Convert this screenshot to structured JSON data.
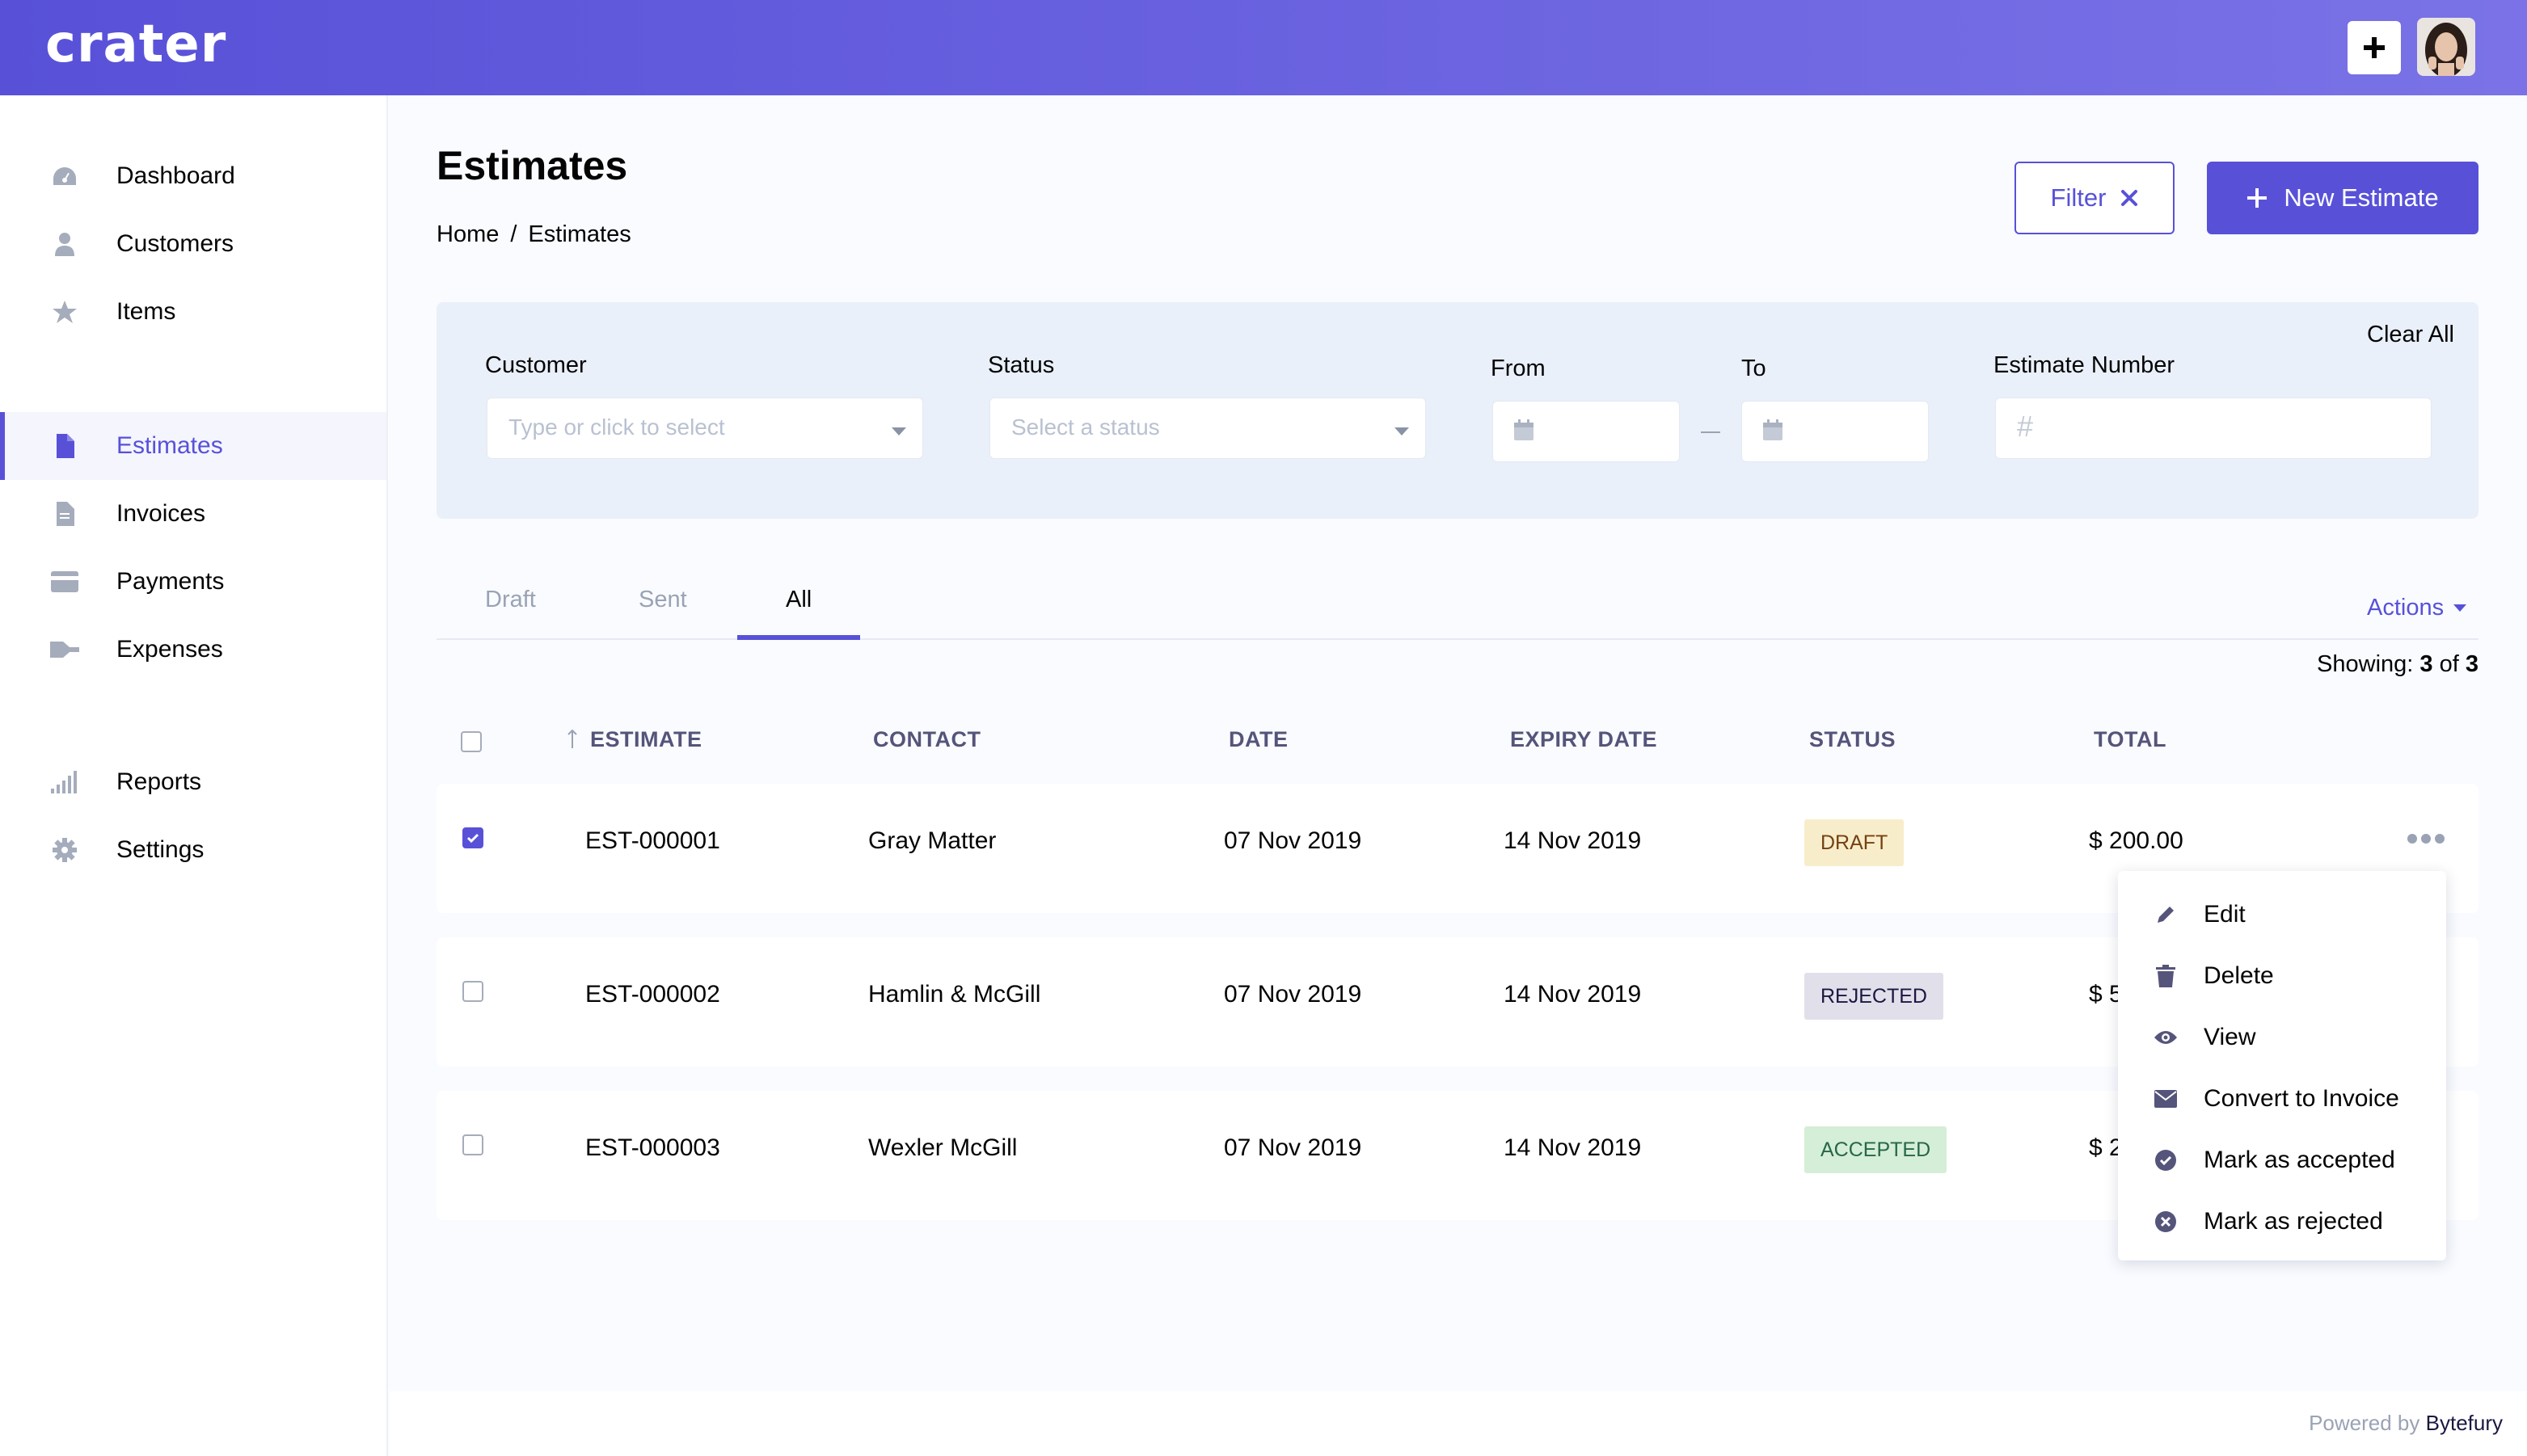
{
  "app": {
    "logo": "crater"
  },
  "header": {
    "add_icon": "plus-icon"
  },
  "sidebar": {
    "items": [
      {
        "label": "Dashboard",
        "icon": "dashboard-icon"
      },
      {
        "label": "Customers",
        "icon": "user-icon"
      },
      {
        "label": "Items",
        "icon": "star-icon"
      },
      {
        "label": "Estimates",
        "icon": "file-icon",
        "active": true
      },
      {
        "label": "Invoices",
        "icon": "file-icon"
      },
      {
        "label": "Payments",
        "icon": "credit-card-icon"
      },
      {
        "label": "Expenses",
        "icon": "key-icon"
      },
      {
        "label": "Reports",
        "icon": "signal-icon"
      },
      {
        "label": "Settings",
        "icon": "gear-icon"
      }
    ]
  },
  "page": {
    "title": "Estimates",
    "breadcrumb": [
      "Home",
      "/",
      "Estimates"
    ],
    "filter_label": "Filter",
    "new_label": "New Estimate"
  },
  "filters": {
    "clear_all": "Clear All",
    "customer_label": "Customer",
    "customer_placeholder": "Type or click to select",
    "status_label": "Status",
    "status_placeholder": "Select a status",
    "from_label": "From",
    "to_label": "To",
    "number_label": "Estimate Number",
    "number_icon": "#"
  },
  "tabs": [
    {
      "label": "Draft"
    },
    {
      "label": "Sent"
    },
    {
      "label": "All",
      "active": true
    }
  ],
  "actions_label": "Actions",
  "showing": {
    "prefix": "Showing:",
    "shown": "3",
    "of": "of",
    "total": "3"
  },
  "table": {
    "columns": [
      "ESTIMATE",
      "CONTACT",
      "DATE",
      "EXPIRY DATE",
      "STATUS",
      "TOTAL"
    ],
    "rows": [
      {
        "estimate": "EST-000001",
        "contact": "Gray Matter",
        "date": "07 Nov 2019",
        "expiry": "14 Nov 2019",
        "status": "DRAFT",
        "total": "$ 200.00",
        "checked": true
      },
      {
        "estimate": "EST-000002",
        "contact": "Hamlin & McGill",
        "date": "07 Nov 2019",
        "expiry": "14 Nov 2019",
        "status": "REJECTED",
        "total": "$ 5",
        "checked": false
      },
      {
        "estimate": "EST-000003",
        "contact": "Wexler McGill",
        "date": "07 Nov 2019",
        "expiry": "14 Nov 2019",
        "status": "ACCEPTED",
        "total": "$ 2",
        "checked": false
      }
    ]
  },
  "row_menu": [
    {
      "label": "Edit",
      "icon": "pencil-icon"
    },
    {
      "label": "Delete",
      "icon": "trash-icon"
    },
    {
      "label": "View",
      "icon": "eye-icon"
    },
    {
      "label": "Convert to Invoice",
      "icon": "envelope-icon"
    },
    {
      "label": "Mark as accepted",
      "icon": "check-circle-icon"
    },
    {
      "label": "Mark as rejected",
      "icon": "x-circle-icon"
    }
  ],
  "footer": {
    "powered": "Powered by",
    "brand": "Bytefury"
  },
  "colors": {
    "primary": "#5851d8",
    "text": "#040405",
    "muted": "#9aa3b5",
    "panel": "#eaf0f9"
  }
}
